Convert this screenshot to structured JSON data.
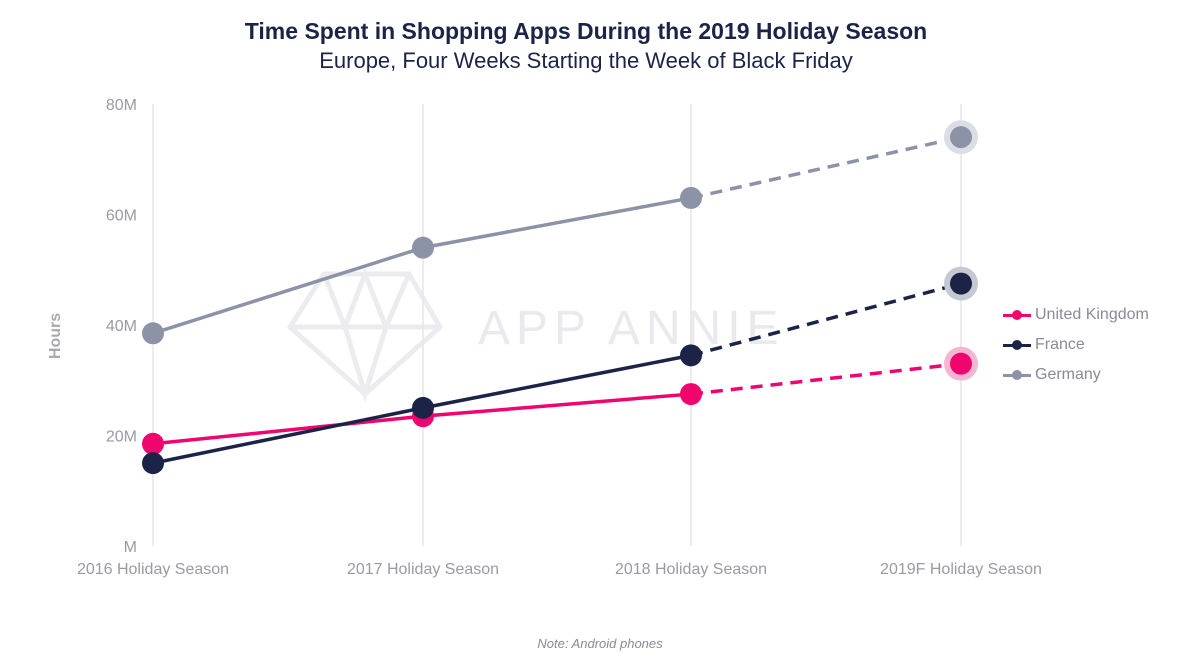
{
  "header": {
    "title": "Time Spent in Shopping Apps During the 2019 Holiday Season",
    "subtitle": "Europe, Four Weeks Starting the Week of Black Friday"
  },
  "watermark": "APP ANNIE",
  "note": "Note: Android phones",
  "chart_data": {
    "type": "line",
    "title": "Time Spent in Shopping Apps During the 2019 Holiday Season",
    "subtitle": "Europe, Four Weeks Starting the Week of Black Friday",
    "xlabel": "",
    "ylabel": "Hours",
    "categories": [
      "2016 Holiday Season",
      "2017 Holiday Season",
      "2018 Holiday Season",
      "2019F Holiday Season"
    ],
    "y_ticks": [
      "M",
      "20M",
      "40M",
      "60M",
      "80M"
    ],
    "ylim": [
      0,
      80
    ],
    "y_unit": "millions of hours",
    "grid": "vertical",
    "legend_position": "right",
    "forecast_from_index": 2,
    "series": [
      {
        "name": "United Kingdom",
        "color": "#f0056f",
        "halo": "#f5b6d1",
        "values": [
          18.5,
          23.5,
          27.5,
          33
        ]
      },
      {
        "name": "France",
        "color": "#1b2447",
        "halo": "#c7c9d2",
        "values": [
          15,
          25,
          34.5,
          47.5
        ]
      },
      {
        "name": "Germany",
        "color": "#8d93a6",
        "halo": "#dcdee5",
        "values": [
          38.5,
          54,
          63,
          74
        ]
      }
    ]
  }
}
